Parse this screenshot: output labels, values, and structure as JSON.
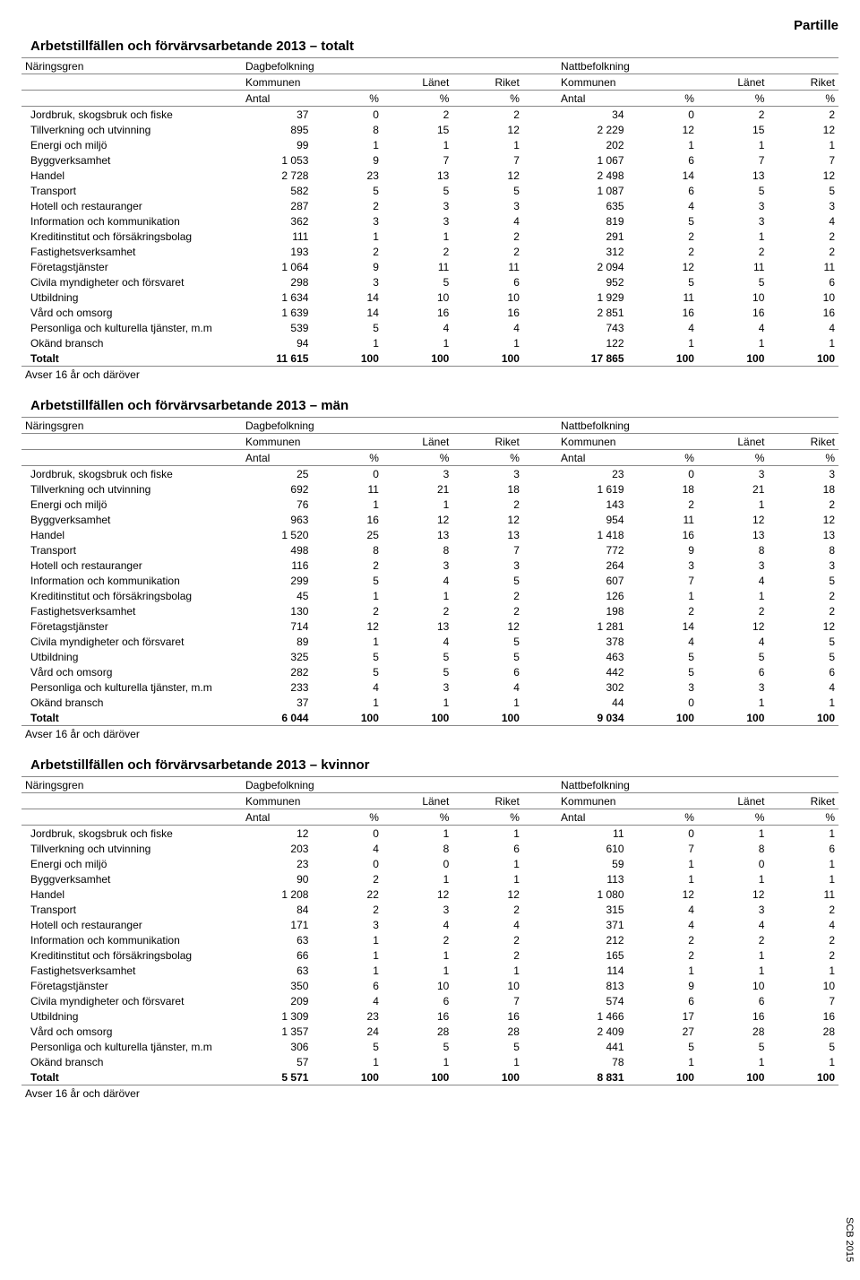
{
  "doc_title": "Partille",
  "side_label": "SCB 2015",
  "header": {
    "naringsgren": "Näringsgren",
    "dag": "Dagbefolkning",
    "natt": "Nattbefolkning",
    "kommunen": "Kommunen",
    "lanet": "Länet",
    "riket": "Riket",
    "antal": "Antal",
    "pct": "%"
  },
  "footnote": "Avser 16 år och däröver",
  "row_labels": [
    "Jordbruk, skogsbruk och fiske",
    "Tillverkning och utvinning",
    "Energi och miljö",
    "Byggverksamhet",
    "Handel",
    "Transport",
    "Hotell och restauranger",
    "Information och kommunikation",
    "Kreditinstitut och försäkringsbolag",
    "Fastighetsverksamhet",
    "Företagstjänster",
    "Civila myndigheter och försvaret",
    "Utbildning",
    "Vård och omsorg",
    "Personliga och kulturella tjänster, m.m",
    "Okänd bransch",
    "Totalt"
  ],
  "tables": [
    {
      "title": "Arbetstillfällen och förvärvsarbetande 2013 – totalt",
      "rows": [
        [
          "37",
          "0",
          "2",
          "2",
          "34",
          "0",
          "2",
          "2"
        ],
        [
          "895",
          "8",
          "15",
          "12",
          "2 229",
          "12",
          "15",
          "12"
        ],
        [
          "99",
          "1",
          "1",
          "1",
          "202",
          "1",
          "1",
          "1"
        ],
        [
          "1 053",
          "9",
          "7",
          "7",
          "1 067",
          "6",
          "7",
          "7"
        ],
        [
          "2 728",
          "23",
          "13",
          "12",
          "2 498",
          "14",
          "13",
          "12"
        ],
        [
          "582",
          "5",
          "5",
          "5",
          "1 087",
          "6",
          "5",
          "5"
        ],
        [
          "287",
          "2",
          "3",
          "3",
          "635",
          "4",
          "3",
          "3"
        ],
        [
          "362",
          "3",
          "3",
          "4",
          "819",
          "5",
          "3",
          "4"
        ],
        [
          "111",
          "1",
          "1",
          "2",
          "291",
          "2",
          "1",
          "2"
        ],
        [
          "193",
          "2",
          "2",
          "2",
          "312",
          "2",
          "2",
          "2"
        ],
        [
          "1 064",
          "9",
          "11",
          "11",
          "2 094",
          "12",
          "11",
          "11"
        ],
        [
          "298",
          "3",
          "5",
          "6",
          "952",
          "5",
          "5",
          "6"
        ],
        [
          "1 634",
          "14",
          "10",
          "10",
          "1 929",
          "11",
          "10",
          "10"
        ],
        [
          "1 639",
          "14",
          "16",
          "16",
          "2 851",
          "16",
          "16",
          "16"
        ],
        [
          "539",
          "5",
          "4",
          "4",
          "743",
          "4",
          "4",
          "4"
        ],
        [
          "94",
          "1",
          "1",
          "1",
          "122",
          "1",
          "1",
          "1"
        ],
        [
          "11 615",
          "100",
          "100",
          "100",
          "17 865",
          "100",
          "100",
          "100"
        ]
      ]
    },
    {
      "title": "Arbetstillfällen och förvärvsarbetande 2013 – män",
      "rows": [
        [
          "25",
          "0",
          "3",
          "3",
          "23",
          "0",
          "3",
          "3"
        ],
        [
          "692",
          "11",
          "21",
          "18",
          "1 619",
          "18",
          "21",
          "18"
        ],
        [
          "76",
          "1",
          "1",
          "2",
          "143",
          "2",
          "1",
          "2"
        ],
        [
          "963",
          "16",
          "12",
          "12",
          "954",
          "11",
          "12",
          "12"
        ],
        [
          "1 520",
          "25",
          "13",
          "13",
          "1 418",
          "16",
          "13",
          "13"
        ],
        [
          "498",
          "8",
          "8",
          "7",
          "772",
          "9",
          "8",
          "8"
        ],
        [
          "116",
          "2",
          "3",
          "3",
          "264",
          "3",
          "3",
          "3"
        ],
        [
          "299",
          "5",
          "4",
          "5",
          "607",
          "7",
          "4",
          "5"
        ],
        [
          "45",
          "1",
          "1",
          "2",
          "126",
          "1",
          "1",
          "2"
        ],
        [
          "130",
          "2",
          "2",
          "2",
          "198",
          "2",
          "2",
          "2"
        ],
        [
          "714",
          "12",
          "13",
          "12",
          "1 281",
          "14",
          "12",
          "12"
        ],
        [
          "89",
          "1",
          "4",
          "5",
          "378",
          "4",
          "4",
          "5"
        ],
        [
          "325",
          "5",
          "5",
          "5",
          "463",
          "5",
          "5",
          "5"
        ],
        [
          "282",
          "5",
          "5",
          "6",
          "442",
          "5",
          "6",
          "6"
        ],
        [
          "233",
          "4",
          "3",
          "4",
          "302",
          "3",
          "3",
          "4"
        ],
        [
          "37",
          "1",
          "1",
          "1",
          "44",
          "0",
          "1",
          "1"
        ],
        [
          "6 044",
          "100",
          "100",
          "100",
          "9 034",
          "100",
          "100",
          "100"
        ]
      ]
    },
    {
      "title": "Arbetstillfällen och förvärvsarbetande 2013 – kvinnor",
      "rows": [
        [
          "12",
          "0",
          "1",
          "1",
          "11",
          "0",
          "1",
          "1"
        ],
        [
          "203",
          "4",
          "8",
          "6",
          "610",
          "7",
          "8",
          "6"
        ],
        [
          "23",
          "0",
          "0",
          "1",
          "59",
          "1",
          "0",
          "1"
        ],
        [
          "90",
          "2",
          "1",
          "1",
          "113",
          "1",
          "1",
          "1"
        ],
        [
          "1 208",
          "22",
          "12",
          "12",
          "1 080",
          "12",
          "12",
          "11"
        ],
        [
          "84",
          "2",
          "3",
          "2",
          "315",
          "4",
          "3",
          "2"
        ],
        [
          "171",
          "3",
          "4",
          "4",
          "371",
          "4",
          "4",
          "4"
        ],
        [
          "63",
          "1",
          "2",
          "2",
          "212",
          "2",
          "2",
          "2"
        ],
        [
          "66",
          "1",
          "1",
          "2",
          "165",
          "2",
          "1",
          "2"
        ],
        [
          "63",
          "1",
          "1",
          "1",
          "114",
          "1",
          "1",
          "1"
        ],
        [
          "350",
          "6",
          "10",
          "10",
          "813",
          "9",
          "10",
          "10"
        ],
        [
          "209",
          "4",
          "6",
          "7",
          "574",
          "6",
          "6",
          "7"
        ],
        [
          "1 309",
          "23",
          "16",
          "16",
          "1 466",
          "17",
          "16",
          "16"
        ],
        [
          "1 357",
          "24",
          "28",
          "28",
          "2 409",
          "27",
          "28",
          "28"
        ],
        [
          "306",
          "5",
          "5",
          "5",
          "441",
          "5",
          "5",
          "5"
        ],
        [
          "57",
          "1",
          "1",
          "1",
          "78",
          "1",
          "1",
          "1"
        ],
        [
          "5 571",
          "100",
          "100",
          "100",
          "8 831",
          "100",
          "100",
          "100"
        ]
      ]
    }
  ]
}
